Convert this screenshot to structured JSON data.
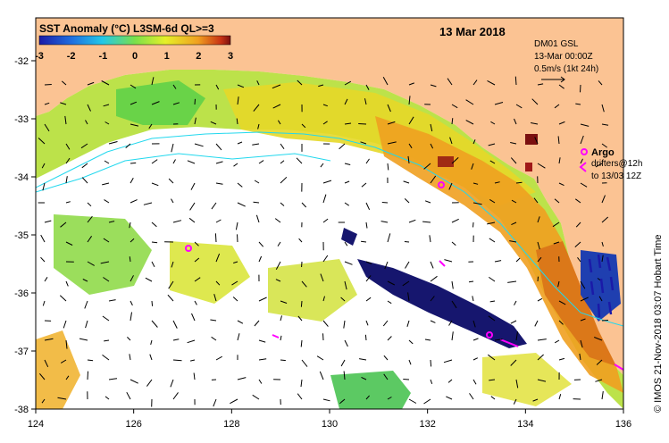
{
  "title": "SST Anomaly (°C) L3SM-6d QL>=3",
  "date": "13 Mar 2018",
  "colorbar": {
    "ticks": [
      "-3",
      "-2",
      "-1",
      "0",
      "1",
      "2",
      "3"
    ],
    "colors": [
      "#1a1aa8",
      "#1f6fe0",
      "#22c8e8",
      "#7ae04a",
      "#e6f028",
      "#f0a020",
      "#c83214",
      "#7a1010"
    ]
  },
  "current_info": {
    "model": "DM01 GSL",
    "time": "13-Mar 00:00Z",
    "scale": "0.5m/s (1kt 24h)"
  },
  "legend": {
    "argo": "Argo",
    "drifters_line1": "drifters@12h",
    "drifters_line2": "to 13/03 12Z"
  },
  "credit": "© IMOS 21-Nov-2018 03:07 Hobart Time",
  "axes": {
    "x_ticks": [
      "124",
      "126",
      "128",
      "130",
      "132",
      "134",
      "136"
    ],
    "y_ticks": [
      "-32",
      "-33",
      "-34",
      "-35",
      "-36",
      "-37",
      "-38"
    ]
  },
  "colors": {
    "land": "#fbc393",
    "ocean_nodata": "#ffffff",
    "argo": "#ff00ff",
    "isobath": "#22d8ee",
    "arrow": "#000000"
  }
}
